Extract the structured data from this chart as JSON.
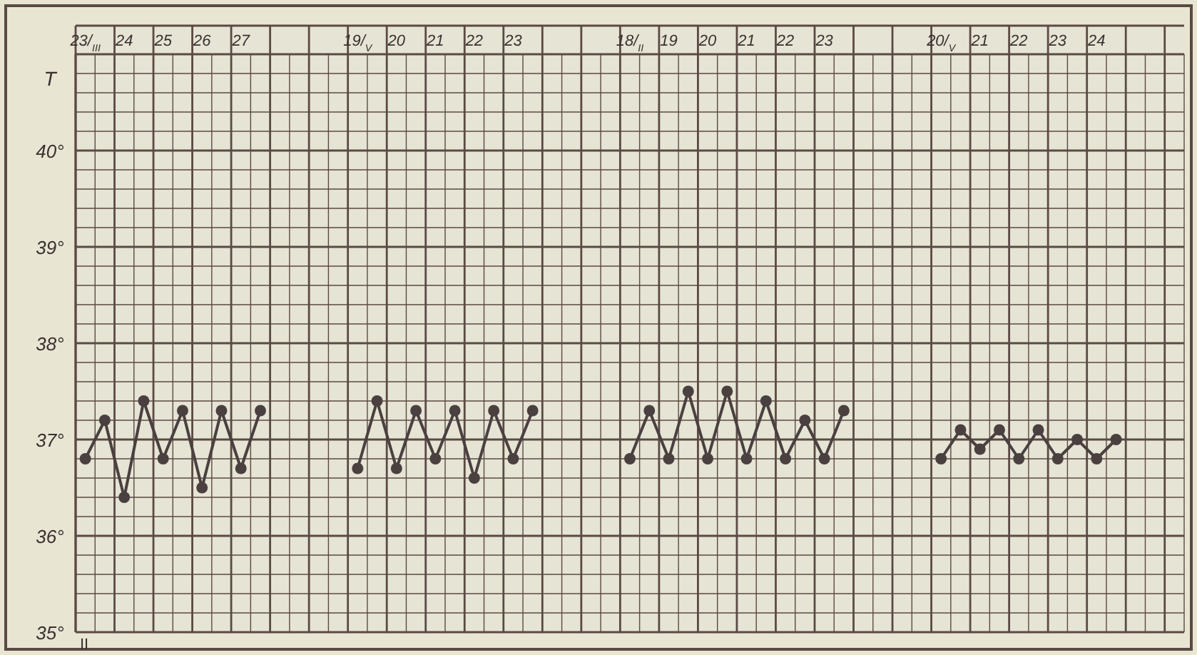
{
  "chart_data": {
    "type": "line",
    "ylabel": "T",
    "marker": "circle",
    "grid": true,
    "ylim": [
      35,
      41
    ],
    "yticks": [
      {
        "value": 35,
        "label": "35°"
      },
      {
        "value": 36,
        "label": "36°"
      },
      {
        "value": 37,
        "label": "37°"
      },
      {
        "value": 38,
        "label": "38°"
      },
      {
        "value": 39,
        "label": "39°"
      },
      {
        "value": 40,
        "label": "40°"
      }
    ],
    "categories": [
      "23/$_{III}$",
      null,
      "24",
      null,
      "25",
      null,
      "26",
      null,
      "27",
      null,
      null,
      null,
      null,
      null,
      "19/$_{V}$",
      null,
      "20",
      null,
      "21",
      null,
      "22",
      null,
      "23",
      null,
      null,
      null,
      null,
      null,
      "18/$_{II}$",
      null,
      "19",
      null,
      "20",
      null,
      "21",
      null,
      "22",
      null,
      "23",
      null,
      null,
      null,
      null,
      null,
      "20/$_{V}$",
      null,
      "21",
      null,
      "22",
      null,
      "23",
      null,
      "24",
      null,
      null,
      null,
      null
    ],
    "annotations": [
      "II"
    ],
    "series": [
      {
        "color": "#4a4040",
        "values": [
          36.8,
          37.2,
          36.4,
          37.4,
          36.8,
          37.3,
          36.5,
          37.3,
          36.7,
          37.3,
          null,
          null,
          null,
          null,
          36.7,
          37.4,
          36.7,
          37.3,
          36.8,
          37.3,
          36.6,
          37.3,
          36.8,
          37.3,
          null,
          null,
          null,
          null,
          36.8,
          37.3,
          36.8,
          37.5,
          36.8,
          37.5,
          36.8,
          37.4,
          36.8,
          37.2,
          36.8,
          37.3,
          null,
          null,
          null,
          null,
          36.8,
          37.1,
          36.9,
          37.1,
          36.8,
          37.1,
          36.8,
          37.0,
          36.8,
          37.0,
          null,
          null,
          null
        ]
      }
    ]
  }
}
